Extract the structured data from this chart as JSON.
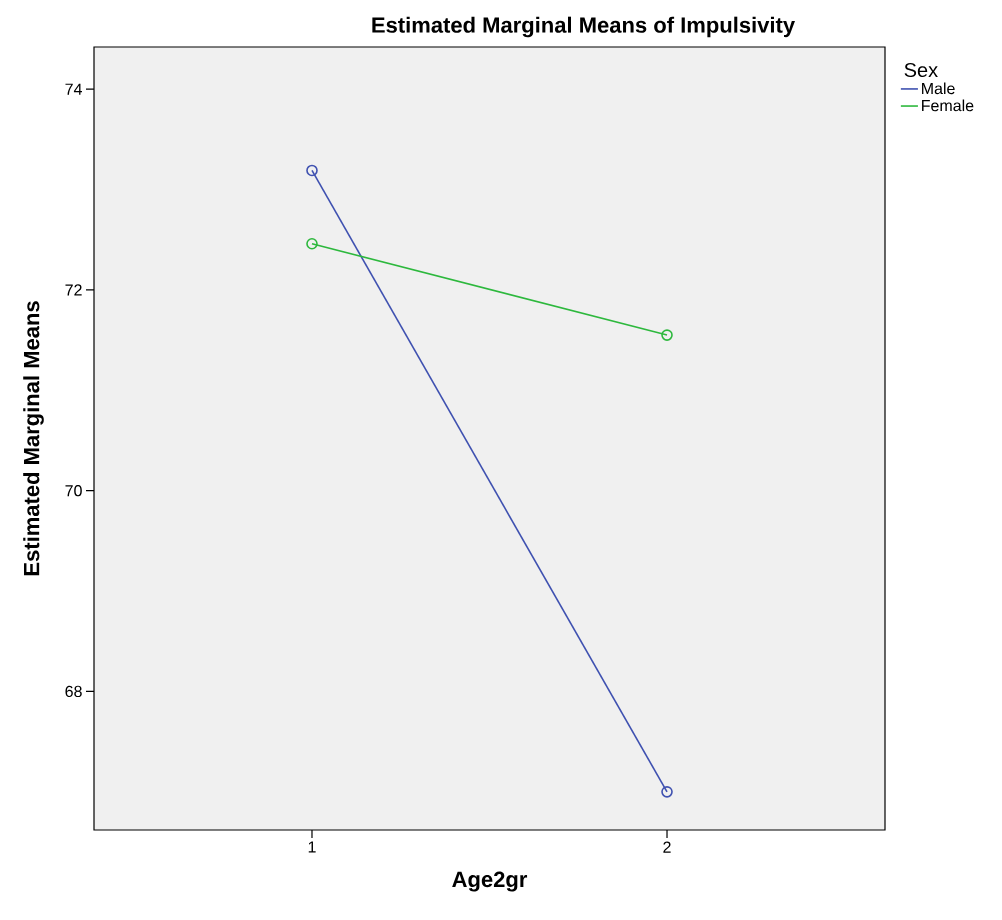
{
  "chart_data": {
    "type": "line",
    "title": "Estimated Marginal Means of Impulsivity",
    "xlabel": "Age2gr",
    "ylabel": "Estimated Marginal Means",
    "legend_title": "Sex",
    "categories": [
      "1",
      "2"
    ],
    "series": [
      {
        "name": "Male",
        "color": "#3f51b0",
        "values": [
          73.19,
          67.0
        ]
      },
      {
        "name": "Female",
        "color": "#2db83d",
        "values": [
          72.46,
          71.55
        ]
      }
    ],
    "ylim": [
      66.62,
      74.42
    ],
    "yticks": [
      68,
      70,
      72,
      74
    ],
    "legend": "right",
    "marker": "circle",
    "line_style": "solid"
  }
}
